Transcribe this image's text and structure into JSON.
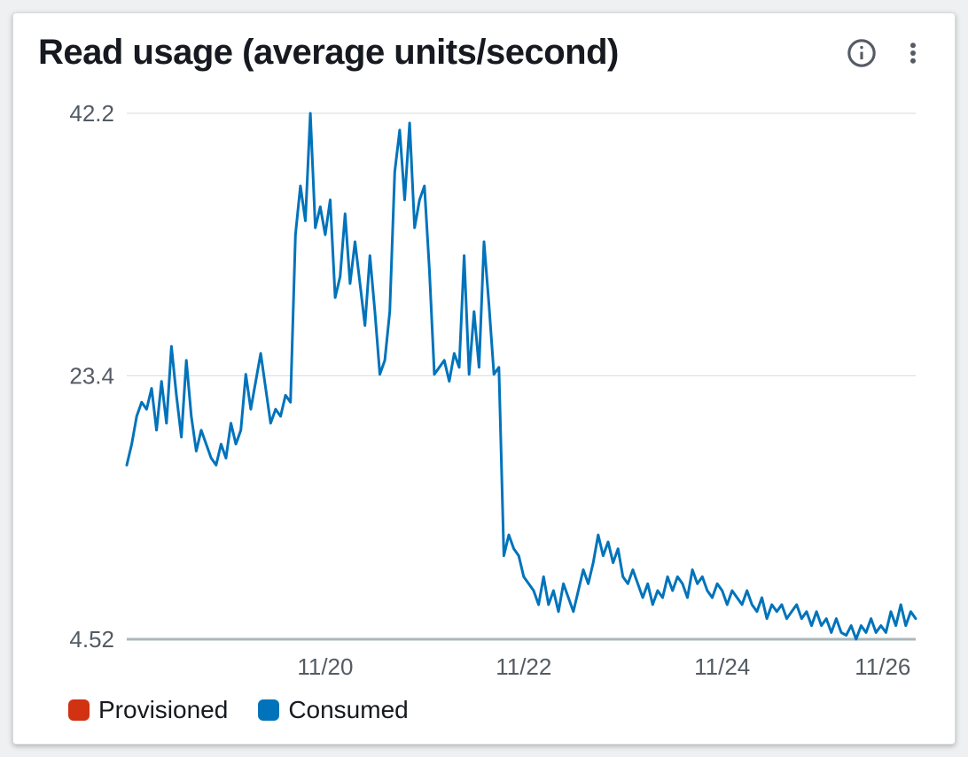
{
  "card": {
    "title": "Read usage (average units/second)",
    "info_icon": "info-icon",
    "menu_icon": "vertical-dots-icon"
  },
  "chart": {
    "type": "line",
    "background_color": "#ffffff",
    "grid_color": "#d5dbdb",
    "axis_color": "#aab7b8",
    "axis_width": 3,
    "tick_font_size": 26,
    "tick_color": "#545b64",
    "ylim": [
      4.52,
      42.2
    ],
    "yticks": [
      4.52,
      23.4,
      42.2
    ],
    "x_count": 160,
    "xticks": [
      {
        "pos": 40,
        "label": "11/20"
      },
      {
        "pos": 80,
        "label": "11/22"
      },
      {
        "pos": 120,
        "label": "11/24"
      },
      {
        "pos": 158,
        "label": "11/26"
      }
    ],
    "series": [
      {
        "name": "Consumed",
        "color": "#0073bb",
        "line_width": 3,
        "values": [
          17.0,
          18.5,
          20.5,
          21.5,
          21.0,
          22.5,
          19.5,
          23.0,
          20.0,
          25.5,
          22.0,
          19.0,
          24.5,
          20.5,
          18.0,
          19.5,
          18.5,
          17.5,
          17.0,
          18.5,
          17.5,
          20.0,
          18.5,
          19.5,
          23.5,
          21.0,
          23.0,
          25.0,
          22.5,
          20.0,
          21.0,
          20.5,
          22.0,
          21.5,
          33.5,
          37.0,
          34.5,
          42.2,
          34.0,
          35.5,
          33.5,
          36.0,
          29.0,
          30.5,
          35.0,
          30.0,
          33.0,
          30.0,
          27.0,
          32.0,
          28.0,
          23.5,
          24.5,
          28.0,
          38.0,
          41.0,
          36.0,
          41.5,
          34.0,
          36.0,
          37.0,
          31.0,
          23.5,
          24.0,
          24.5,
          23.0,
          25.0,
          24.0,
          32.0,
          23.5,
          28.0,
          24.0,
          33.0,
          28.5,
          23.5,
          24.0,
          10.5,
          12.0,
          11.0,
          10.5,
          9.0,
          8.5,
          8.0,
          7.0,
          9.0,
          7.0,
          8.0,
          6.5,
          8.5,
          7.5,
          6.5,
          8.0,
          9.5,
          8.5,
          10.0,
          12.0,
          10.5,
          11.5,
          10.0,
          11.0,
          9.0,
          8.5,
          9.5,
          8.5,
          7.5,
          8.5,
          7.0,
          8.0,
          7.5,
          9.0,
          8.0,
          9.0,
          8.5,
          7.5,
          9.5,
          8.5,
          9.0,
          8.0,
          7.5,
          8.5,
          8.0,
          7.0,
          8.0,
          7.5,
          7.0,
          8.0,
          7.0,
          6.5,
          7.5,
          6.0,
          7.0,
          6.5,
          7.0,
          6.0,
          6.5,
          7.0,
          6.0,
          6.5,
          5.5,
          6.5,
          5.5,
          6.0,
          5.0,
          6.0,
          5.0,
          4.8,
          5.5,
          4.52,
          5.5,
          5.0,
          6.0,
          5.0,
          5.5,
          5.0,
          6.5,
          5.5,
          7.0,
          5.5,
          6.5,
          6.0
        ]
      }
    ]
  },
  "legend": {
    "items": [
      {
        "label": "Provisioned",
        "color": "#d13212"
      },
      {
        "label": "Consumed",
        "color": "#0073bb"
      }
    ],
    "swatch_radius": 6,
    "font_size": 28
  }
}
